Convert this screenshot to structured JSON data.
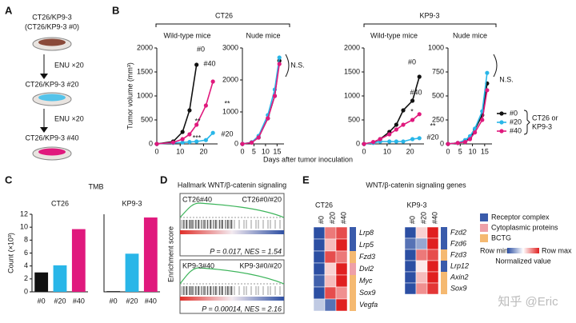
{
  "panel_labels": [
    "A",
    "B",
    "C",
    "D",
    "E"
  ],
  "diagram": {
    "lines": [
      "CT26/KP9-3",
      "(CT26/KP9-3 #0)",
      "ENU ×20",
      "CT26/KP9-3 #20",
      "ENU ×20",
      "CT26/KP9-3 #40"
    ]
  },
  "chart_data": [
    {
      "type": "line",
      "group": "CT26",
      "title": "Wild-type mice",
      "ylabel": "Tumor volume (mm³)",
      "xlabel": "Days after tumor inoculation",
      "x": [
        0,
        7,
        11,
        14,
        17,
        21,
        24
      ],
      "xlim": [
        0,
        26
      ],
      "xticks": [
        0,
        10,
        20
      ],
      "ylim": [
        0,
        2000
      ],
      "yticks": [
        0,
        500,
        1000,
        1500,
        2000
      ],
      "series": [
        {
          "name": "#0",
          "color": "#111111",
          "values": [
            0,
            50,
            250,
            700,
            1650,
            null,
            null
          ]
        },
        {
          "name": "#20",
          "color": "#29b6e8",
          "values": [
            0,
            20,
            30,
            40,
            50,
            80,
            230
          ]
        },
        {
          "name": "#40",
          "color": "#e0197d",
          "values": [
            0,
            30,
            100,
            200,
            400,
            800,
            1300
          ]
        }
      ],
      "annotations": [
        "#0",
        "#40",
        "#20",
        "**",
        "***",
        "**"
      ]
    },
    {
      "type": "line",
      "title": "Nude mice",
      "x": [
        0,
        4,
        7,
        11,
        14,
        16
      ],
      "xlim": [
        0,
        18
      ],
      "xticks": [
        0,
        5,
        10,
        15
      ],
      "ylim": [
        0,
        3000
      ],
      "yticks": [
        0,
        1000,
        2000,
        3000
      ],
      "series": [
        {
          "name": "#0",
          "color": "#111111",
          "values": [
            0,
            50,
            200,
            800,
            1500,
            2600
          ]
        },
        {
          "name": "#20",
          "color": "#29b6e8",
          "values": [
            0,
            50,
            250,
            900,
            1700,
            2700
          ]
        },
        {
          "name": "#40",
          "color": "#e0197d",
          "values": [
            0,
            40,
            200,
            800,
            1500,
            2500
          ]
        }
      ],
      "annotations": [
        "N.S."
      ]
    },
    {
      "type": "line",
      "group": "KP9-3",
      "title": "Wild-type mice",
      "x": [
        0,
        4,
        7,
        11,
        14,
        17,
        21,
        24
      ],
      "xlim": [
        0,
        26
      ],
      "xticks": [
        0,
        10,
        20
      ],
      "ylim": [
        0,
        2000
      ],
      "yticks": [
        0,
        500,
        1000,
        1500,
        2000
      ],
      "series": [
        {
          "name": "#0",
          "color": "#111111",
          "values": [
            0,
            30,
            100,
            250,
            400,
            700,
            900,
            1400
          ]
        },
        {
          "name": "#20",
          "color": "#29b6e8",
          "values": [
            0,
            20,
            50,
            50,
            50,
            50,
            100,
            120
          ]
        },
        {
          "name": "#40",
          "color": "#e0197d",
          "values": [
            0,
            40,
            100,
            200,
            300,
            400,
            500,
            620
          ]
        }
      ],
      "annotations": [
        "#0",
        "#40",
        "*",
        "**",
        "#20"
      ]
    },
    {
      "type": "line",
      "title": "Nude mice",
      "legend_title": [
        "CT26 or",
        "KP9-3"
      ],
      "x": [
        0,
        4,
        7,
        9,
        11,
        14,
        16
      ],
      "xlim": [
        0,
        18
      ],
      "xticks": [
        0,
        5,
        10,
        15
      ],
      "ylim": [
        0,
        1000
      ],
      "yticks": [
        0,
        250,
        500,
        750,
        1000
      ],
      "series": [
        {
          "name": "#0",
          "color": "#111111",
          "values": [
            0,
            10,
            30,
            60,
            150,
            300,
            630
          ]
        },
        {
          "name": "#20",
          "color": "#29b6e8",
          "values": [
            0,
            10,
            40,
            80,
            160,
            340,
            740
          ]
        },
        {
          "name": "#40",
          "color": "#e0197d",
          "values": [
            0,
            10,
            20,
            50,
            120,
            250,
            560
          ]
        }
      ],
      "annotations": [
        "N.S."
      ]
    },
    {
      "type": "bar",
      "group": "TMB",
      "title": "CT26",
      "ylabel": "Count (×10³)",
      "categories": [
        "#0",
        "#20",
        "#40"
      ],
      "values": [
        3.0,
        4.1,
        9.7
      ],
      "colors": [
        "#111111",
        "#29b6e8",
        "#e0197d"
      ],
      "ylim": [
        0,
        12
      ],
      "yticks": [
        0,
        2,
        4,
        6,
        8,
        10,
        12
      ]
    },
    {
      "type": "bar",
      "title": "KP9-3",
      "categories": [
        "#0",
        "#20",
        "#40"
      ],
      "values": [
        0.1,
        5.9,
        11.5
      ],
      "colors": [
        "#111111",
        "#29b6e8",
        "#e0197d"
      ],
      "ylim": [
        0,
        12
      ]
    }
  ],
  "gsea": {
    "title": "Hallmark WNT/β-catenin signaling",
    "ylabel": "Enrichment score",
    "plots": [
      {
        "left": "CT26#40",
        "right": "CT26#0/#20",
        "stats": "P = 0.017, NES = 1.54"
      },
      {
        "left": "KP9-3#40",
        "right": "KP9-3#0/#20",
        "stats": "P = 0.00014, NES = 2.16"
      }
    ]
  },
  "heatmap": {
    "title": "WNT/β-catenin signaling genes",
    "blocks": [
      {
        "name": "CT26",
        "columns": [
          "#0",
          "#20",
          "#40"
        ],
        "rows": [
          {
            "gene": "Lrp8",
            "color": "#3a5bab",
            "values": [
              -1,
              0.6,
              0.8
            ]
          },
          {
            "gene": "Lrp5",
            "color": "#3a5bab",
            "values": [
              -1,
              0.3,
              1
            ]
          },
          {
            "gene": "Fzd3",
            "color": "#f5b971",
            "values": [
              -1,
              0.8,
              0.6
            ]
          },
          {
            "gene": "Dvl2",
            "color": "#eea0a8",
            "values": [
              -1,
              0.2,
              1
            ]
          },
          {
            "gene": "Myc",
            "color": "#f5b971",
            "values": [
              -0.9,
              0.3,
              1
            ]
          },
          {
            "gene": "Sox9",
            "color": "#f5b971",
            "values": [
              -1,
              0.8,
              0.5
            ]
          },
          {
            "gene": "Vegfa",
            "color": "#f5b971",
            "values": [
              -0.3,
              -0.8,
              1
            ]
          }
        ]
      },
      {
        "name": "KP9-3",
        "columns": [
          "#0",
          "#20",
          "#40"
        ],
        "rows": [
          {
            "gene": "Fzd2",
            "color": "#3a5bab",
            "values": [
              -1,
              0.2,
              1
            ]
          },
          {
            "gene": "Fzd6",
            "color": "#3a5bab",
            "values": [
              -0.8,
              -0.5,
              1
            ]
          },
          {
            "gene": "Fzd3",
            "color": "#f5b971",
            "values": [
              -1,
              0.6,
              0.8
            ]
          },
          {
            "gene": "Lrp12",
            "color": "#3a5bab",
            "values": [
              -1,
              0.1,
              1
            ]
          },
          {
            "gene": "Axin2",
            "color": "#f5b971",
            "values": [
              -1,
              0.3,
              1
            ]
          },
          {
            "gene": "Sox9",
            "color": "#f5b971",
            "values": [
              -1,
              0.5,
              0.9
            ]
          }
        ]
      }
    ],
    "legend": [
      {
        "name": "Receptor complex",
        "color": "#3a5bab"
      },
      {
        "name": "Cytoplasmic proteins",
        "color": "#eea0a8"
      },
      {
        "name": "BCTG",
        "color": "#f5b971"
      }
    ],
    "scale_min": "Row min",
    "scale_max": "Row max",
    "scale_title": "Normalized value"
  },
  "watermark": "知乎 @Eric"
}
